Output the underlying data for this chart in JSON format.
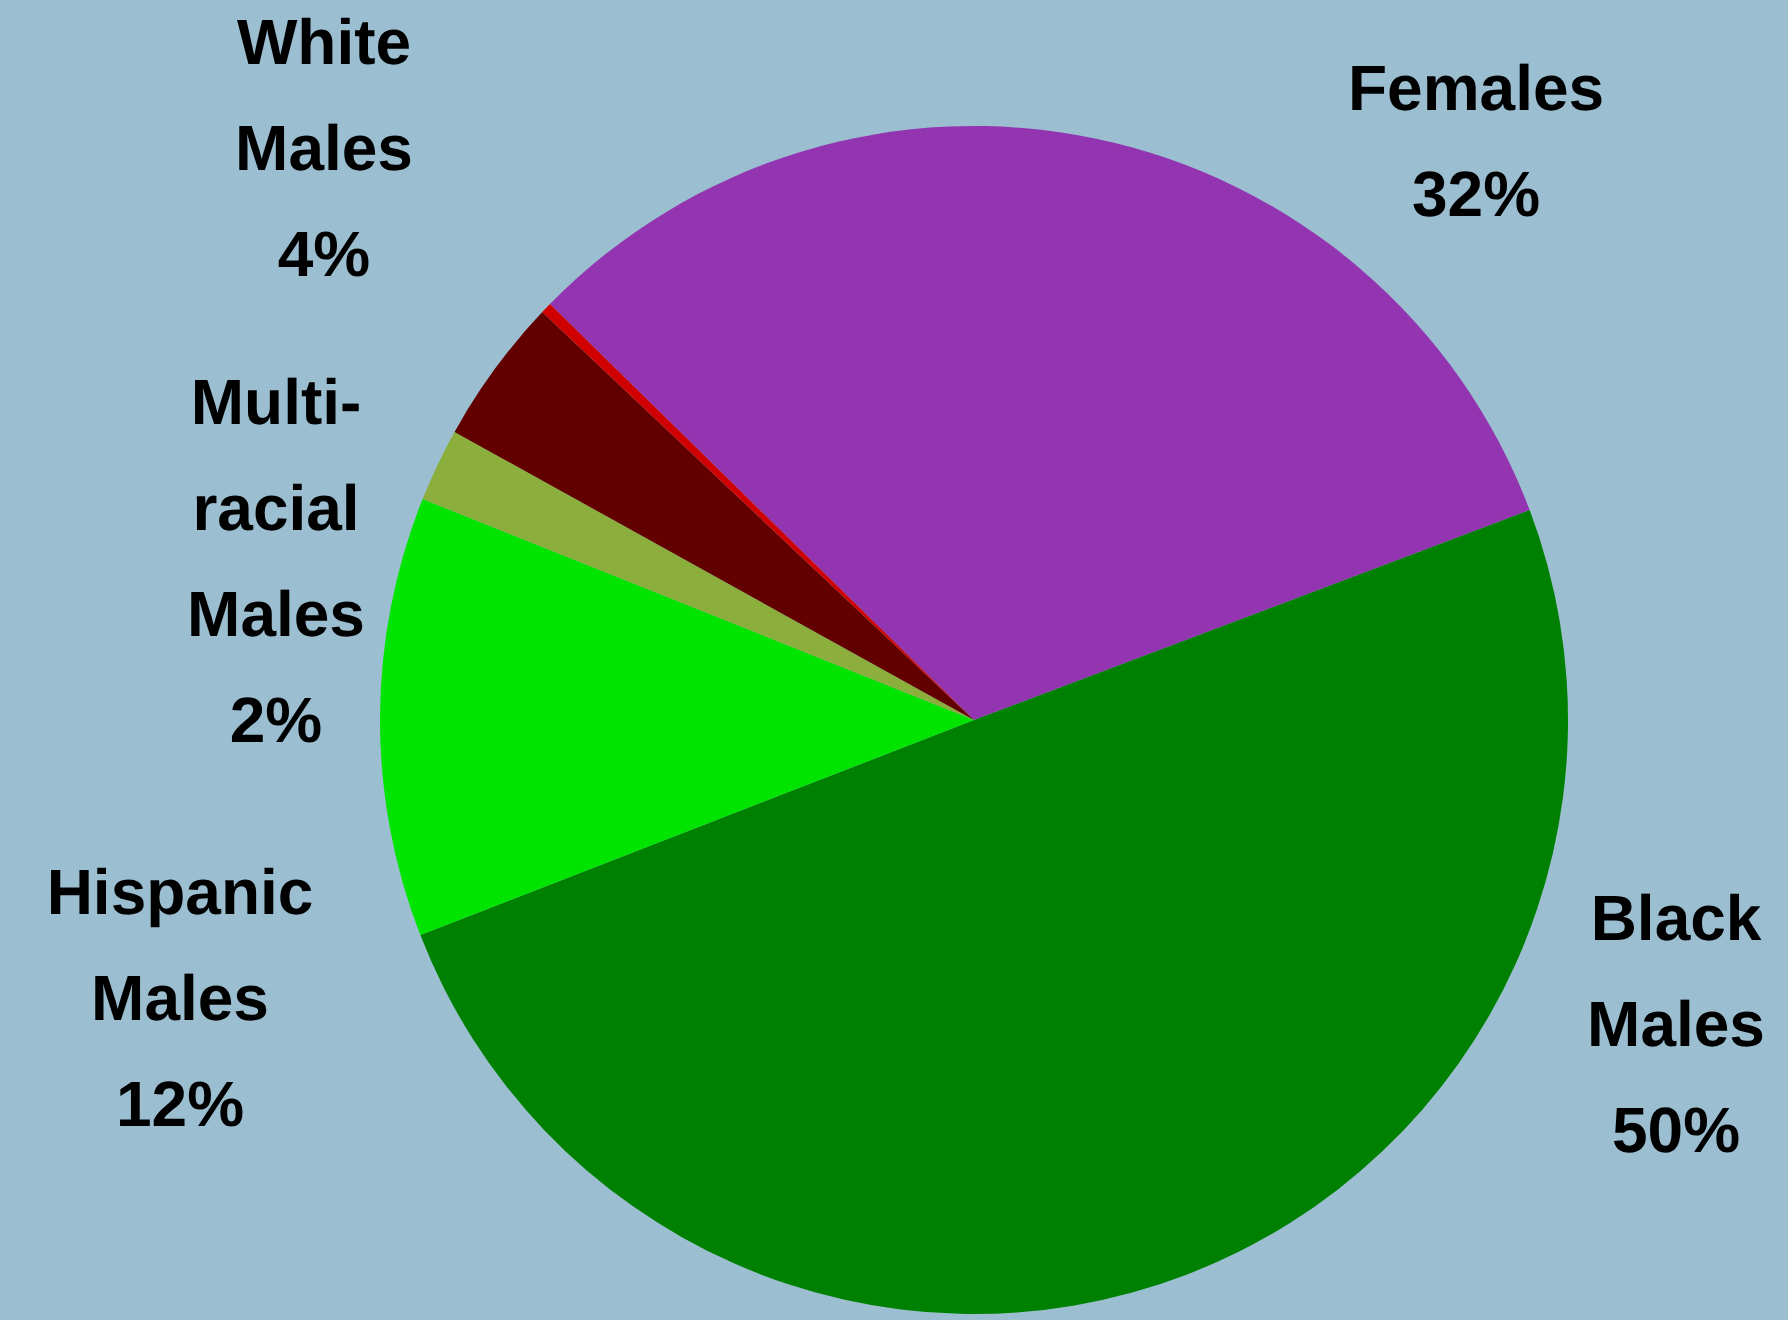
{
  "chart_data": {
    "type": "pie",
    "categories": [
      "Females",
      "Black Males",
      "Hispanic Males",
      "Multi-racial Males",
      "White Males",
      null
    ],
    "values": [
      32,
      50,
      12,
      2,
      4,
      0.3
    ],
    "colors": [
      "#9334b0",
      "#008000",
      "#00e400",
      "#8cae3c",
      "#620000",
      "#d00000"
    ],
    "value_labels": [
      "32%",
      "50%",
      "12%",
      "2%",
      "4%",
      null
    ]
  }
}
